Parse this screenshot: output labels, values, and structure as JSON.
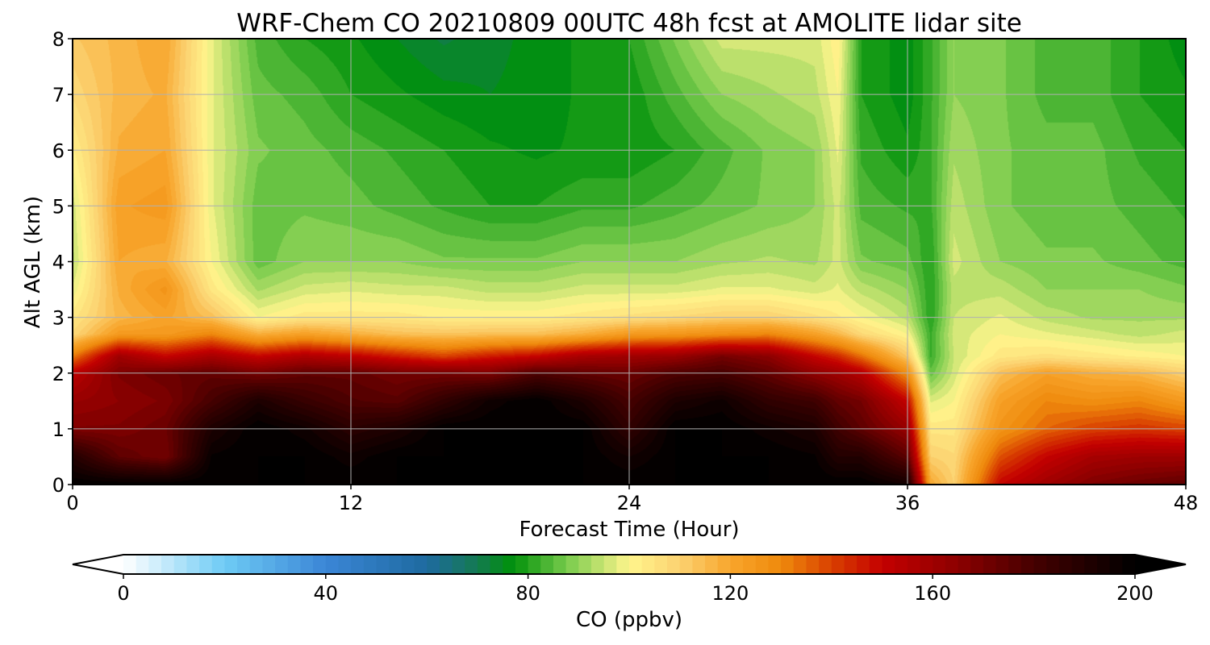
{
  "chart_data": {
    "type": "heatmap",
    "subtype": "filled-contour time-height cross section",
    "title": "WRF-Chem CO  20210809 00UTC 48h fcst at AMOLITE lidar site",
    "xlabel": "Forecast Time (Hour)",
    "ylabel": "Alt AGL (km)",
    "xlim": [
      0,
      48
    ],
    "ylim": [
      0,
      8
    ],
    "x_ticks": [
      0,
      12,
      24,
      36,
      48
    ],
    "y_ticks": [
      0,
      1,
      2,
      3,
      4,
      5,
      6,
      7,
      8
    ],
    "grid": true,
    "colorbar": {
      "label": "CO  (ppbv)",
      "orientation": "horizontal",
      "location": "bottom",
      "vmin": 0,
      "vmax": 200,
      "extend": "both",
      "ticks": [
        0,
        40,
        80,
        120,
        160,
        200
      ],
      "levels_step": 2.5,
      "colors": [
        {
          "v": 0,
          "c": "#ffffff"
        },
        {
          "v": 20,
          "c": "#6ecbf5"
        },
        {
          "v": 40,
          "c": "#3b86d6"
        },
        {
          "v": 60,
          "c": "#1e6aa0"
        },
        {
          "v": 70,
          "c": "#147a50"
        },
        {
          "v": 77,
          "c": "#00910a"
        },
        {
          "v": 88,
          "c": "#7ccc4e"
        },
        {
          "v": 100,
          "c": "#fff58c"
        },
        {
          "v": 110,
          "c": "#fbd170"
        },
        {
          "v": 120,
          "c": "#f8a52c"
        },
        {
          "v": 130,
          "c": "#ef8a0c"
        },
        {
          "v": 140,
          "c": "#d94000"
        },
        {
          "v": 150,
          "c": "#c40000"
        },
        {
          "v": 165,
          "c": "#8c0000"
        },
        {
          "v": 180,
          "c": "#450000"
        },
        {
          "v": 200,
          "c": "#000000"
        }
      ]
    },
    "x": [
      0,
      2,
      4,
      6,
      8,
      10,
      12,
      14,
      16,
      18,
      20,
      22,
      24,
      26,
      28,
      30,
      32,
      33,
      34,
      36,
      37,
      38,
      40,
      42,
      44,
      46,
      48
    ],
    "y": [
      0,
      0.5,
      1,
      1.5,
      2,
      2.3,
      2.7,
      3,
      3.5,
      4,
      5,
      6,
      7,
      8
    ],
    "values": [
      [
        200,
        200,
        200,
        200,
        200,
        200,
        200,
        200,
        200,
        200,
        200,
        200,
        200,
        200,
        200,
        200,
        200,
        200,
        200,
        195,
        120,
        110,
        150,
        160,
        168,
        172,
        175
      ],
      [
        190,
        175,
        170,
        198,
        200,
        200,
        196,
        200,
        200,
        200,
        200,
        200,
        195,
        200,
        200,
        200,
        198,
        190,
        190,
        175,
        110,
        108,
        138,
        150,
        158,
        160,
        160
      ],
      [
        168,
        168,
        172,
        192,
        200,
        196,
        188,
        192,
        200,
        200,
        200,
        200,
        186,
        200,
        200,
        196,
        192,
        182,
        175,
        162,
        104,
        104,
        126,
        135,
        140,
        142,
        140
      ],
      [
        162,
        165,
        168,
        180,
        192,
        184,
        178,
        176,
        186,
        196,
        200,
        192,
        180,
        192,
        196,
        186,
        182,
        174,
        170,
        150,
        97,
        100,
        122,
        130,
        128,
        130,
        124
      ],
      [
        152,
        168,
        172,
        174,
        170,
        174,
        174,
        170,
        170,
        168,
        178,
        174,
        172,
        178,
        180,
        174,
        164,
        160,
        154,
        128,
        86,
        96,
        114,
        122,
        118,
        116,
        110
      ],
      [
        132,
        160,
        150,
        158,
        150,
        156,
        152,
        146,
        140,
        146,
        150,
        158,
        160,
        162,
        170,
        165,
        150,
        144,
        134,
        112,
        82,
        95,
        104,
        106,
        104,
        102,
        100
      ],
      [
        108,
        124,
        124,
        130,
        118,
        122,
        118,
        114,
        113,
        114,
        114,
        118,
        124,
        125,
        128,
        130,
        122,
        116,
        108,
        100,
        82,
        96,
        100,
        98,
        96,
        94,
        96
      ],
      [
        104,
        116,
        121,
        114,
        100,
        104,
        104,
        104,
        102,
        102,
        102,
        104,
        106,
        108,
        110,
        110,
        106,
        103,
        100,
        94,
        80,
        95,
        98,
        94,
        92,
        92,
        92
      ],
      [
        98,
        118,
        126,
        104,
        92,
        96,
        97,
        96,
        96,
        94,
        94,
        96,
        96,
        96,
        98,
        98,
        96,
        98,
        94,
        90,
        80,
        94,
        94,
        90,
        90,
        90,
        88
      ],
      [
        94,
        120,
        118,
        100,
        86,
        90,
        90,
        90,
        88,
        88,
        88,
        90,
        90,
        90,
        92,
        93,
        92,
        96,
        88,
        86,
        80,
        96,
        90,
        88,
        88,
        86,
        84
      ],
      [
        96,
        122,
        124,
        98,
        86,
        87,
        86,
        84,
        82,
        80,
        80,
        82,
        82,
        84,
        86,
        88,
        90,
        96,
        84,
        82,
        82,
        94,
        88,
        86,
        86,
        84,
        82
      ],
      [
        102,
        118,
        120,
        98,
        88,
        86,
        84,
        82,
        80,
        78,
        77,
        78,
        78,
        80,
        84,
        88,
        90,
        98,
        82,
        78,
        82,
        92,
        88,
        86,
        86,
        82,
        80
      ],
      [
        108,
        116,
        118,
        98,
        86,
        84,
        80,
        78,
        76,
        75,
        76,
        78,
        78,
        84,
        90,
        92,
        94,
        100,
        80,
        76,
        82,
        90,
        88,
        84,
        84,
        80,
        78
      ],
      [
        112,
        116,
        120,
        98,
        84,
        80,
        78,
        75,
        72,
        74,
        76,
        78,
        80,
        88,
        96,
        96,
        96,
        102,
        80,
        76,
        82,
        90,
        88,
        84,
        84,
        80,
        76
      ]
    ]
  }
}
